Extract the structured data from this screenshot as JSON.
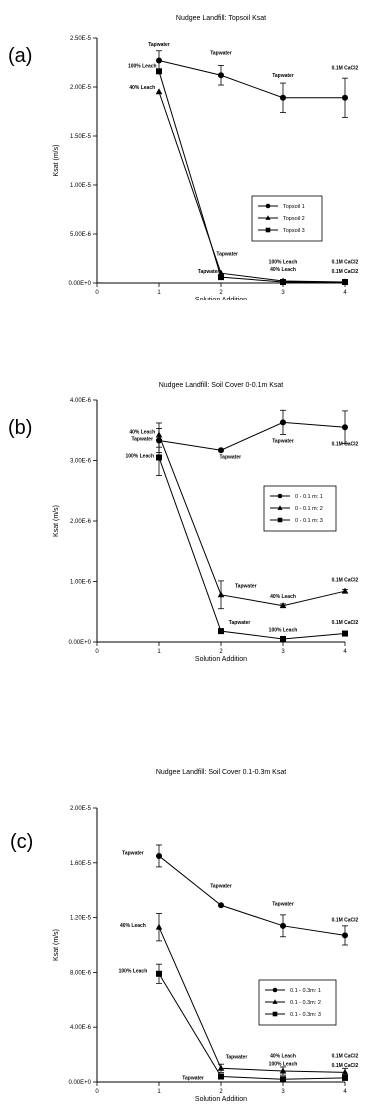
{
  "chart_data": [
    {
      "type": "line",
      "panel_label": "(a)",
      "title": "Nudgee Landfill: Topsoil Ksat",
      "xlabel": "Solution Addition",
      "ylabel": "Ksat (m/s)",
      "xlim": [
        0,
        4
      ],
      "ylim": [
        0,
        2.5e-05
      ],
      "x_ticks": [
        0,
        1,
        2,
        3,
        4
      ],
      "x_tick_labels": [
        "0",
        "1",
        "2",
        "3",
        "4"
      ],
      "y_ticks": [
        0,
        5e-06,
        1e-05,
        1.5e-05,
        2e-05,
        2.5e-05
      ],
      "y_tick_labels": [
        "0.00E+0",
        "5.00E-6",
        "1.00E-5",
        "1.50E-5",
        "2.00E-5",
        "2.50E-5"
      ],
      "x": [
        1,
        2,
        3,
        4
      ],
      "series": [
        {
          "name": "Topsoil 1",
          "marker": "circle",
          "values": [
            2.27e-05,
            2.12e-05,
            1.89e-05,
            1.89e-05
          ],
          "errors": [
            1e-06,
            1e-06,
            1.5e-06,
            2e-06
          ]
        },
        {
          "name": "Topsoil 2",
          "marker": "triangle",
          "values": [
            1.95e-05,
            1e-06,
            2e-07,
            1e-07
          ],
          "errors": [
            0,
            0,
            0,
            0
          ]
        },
        {
          "name": "Topsoil 3",
          "marker": "square",
          "values": [
            2.16e-05,
            6e-07,
            1e-07,
            1e-07
          ],
          "errors": [
            0,
            0,
            0,
            0
          ]
        }
      ],
      "legend_position": "right",
      "annotations": [
        {
          "text": "Tapwater",
          "x": 1,
          "y": 2.42e-05
        },
        {
          "text": "100% Leach",
          "x": 0.73,
          "y": 2.2e-05
        },
        {
          "text": "40% Leach",
          "x": 0.73,
          "y": 1.98e-05
        },
        {
          "text": "Tapwater",
          "x": 2,
          "y": 2.33e-05
        },
        {
          "text": "Tapwater",
          "x": 3,
          "y": 2.1e-05
        },
        {
          "text": "0.1M CaCl2",
          "x": 4,
          "y": 2.18e-05
        },
        {
          "text": "Tapwater",
          "x": 2.1,
          "y": 2.8e-06
        },
        {
          "text": "Tapwater",
          "x": 1.8,
          "y": 1e-06
        },
        {
          "text": "100% Leach",
          "x": 3,
          "y": 2e-06
        },
        {
          "text": "40% Leach",
          "x": 3,
          "y": 1.2e-06
        },
        {
          "text": "0.1M CaCl2",
          "x": 4,
          "y": 2e-06
        },
        {
          "text": "0.1M CaCl2",
          "x": 4,
          "y": 1e-06
        }
      ]
    },
    {
      "type": "line",
      "panel_label": "(b)",
      "title": "Nudgee Landfill: Soil Cover 0-0.1m Ksat",
      "xlabel": "Solution Addition",
      "ylabel": "Ksat (m/s)",
      "xlim": [
        0,
        4
      ],
      "ylim": [
        0,
        4e-06
      ],
      "x_ticks": [
        0,
        1,
        2,
        3,
        4
      ],
      "x_tick_labels": [
        "0",
        "1",
        "2",
        "3",
        "4"
      ],
      "y_ticks": [
        0,
        1e-06,
        2e-06,
        3e-06,
        4e-06
      ],
      "y_tick_labels": [
        "0.00E+0",
        "1.00E-6",
        "2.00E-6",
        "3.00E-6",
        "4.00E-6"
      ],
      "x": [
        1,
        2,
        3,
        4
      ],
      "series": [
        {
          "name": "0 - 0.1 m: 1",
          "marker": "circle",
          "values": [
            3.33e-06,
            3.17e-06,
            3.63e-06,
            3.55e-06
          ],
          "errors": [
            2e-07,
            0,
            2e-07,
            2.7e-07
          ]
        },
        {
          "name": "0 - 0.1 m: 2",
          "marker": "triangle",
          "values": [
            3.42e-06,
            7.8e-07,
            6e-07,
            8.4e-07
          ],
          "errors": [
            2e-07,
            2.3e-07,
            3e-08,
            3e-08
          ]
        },
        {
          "name": "0 - 0.1 m: 3",
          "marker": "square",
          "values": [
            3.05e-06,
            1.8e-07,
            5e-08,
            1.4e-07
          ],
          "errors": [
            3e-07,
            0,
            0,
            0
          ]
        }
      ],
      "legend_position": "right",
      "annotations": [
        {
          "text": "40% Leach",
          "x": 0.73,
          "y": 3.45e-06
        },
        {
          "text": "Tapwater",
          "x": 0.73,
          "y": 3.33e-06
        },
        {
          "text": "100% Leach",
          "x": 0.69,
          "y": 3.05e-06
        },
        {
          "text": "Tapwater",
          "x": 2.15,
          "y": 3.03e-06
        },
        {
          "text": "Tapwater",
          "x": 3,
          "y": 3.3e-06
        },
        {
          "text": "0.1M CaCl2",
          "x": 4,
          "y": 3.25e-06
        },
        {
          "text": "Tapwater",
          "x": 2.4,
          "y": 9e-07
        },
        {
          "text": "40% Leach",
          "x": 3,
          "y": 7.3e-07
        },
        {
          "text": "0.1M CaCl2",
          "x": 4,
          "y": 1e-06
        },
        {
          "text": "Tapwater",
          "x": 2.3,
          "y": 3e-07
        },
        {
          "text": "100% Leach",
          "x": 3,
          "y": 1.7e-07
        },
        {
          "text": "0.1M CaCl2",
          "x": 4,
          "y": 3e-07
        }
      ]
    },
    {
      "type": "line",
      "panel_label": "(c)",
      "title": "Nudgee Landfill: Soil Cover 0.1-0.3m Ksat",
      "xlabel": "Solution Addition",
      "ylabel": "Ksat (m/s)",
      "xlim": [
        0,
        4
      ],
      "ylim": [
        0,
        2e-05
      ],
      "x_ticks": [
        0,
        1,
        2,
        3,
        4
      ],
      "x_tick_labels": [
        "0",
        "1",
        "2",
        "3",
        "4"
      ],
      "y_ticks": [
        0,
        4e-06,
        8e-06,
        1.2e-05,
        1.6e-05,
        2e-05
      ],
      "y_tick_labels": [
        "0.00E+0",
        "4.00E-6",
        "8.00E-6",
        "1.20E-5",
        "1.60E-5",
        "2.00E-5"
      ],
      "x": [
        1,
        2,
        3,
        4
      ],
      "series": [
        {
          "name": "0.1 - 0.3m: 1",
          "marker": "circle",
          "values": [
            1.65e-05,
            1.29e-05,
            1.14e-05,
            1.07e-05
          ],
          "errors": [
            8e-07,
            0,
            8e-07,
            7e-07
          ]
        },
        {
          "name": "0.1 - 0.3m: 2",
          "marker": "triangle",
          "values": [
            1.13e-05,
            1e-06,
            8e-07,
            7e-07
          ],
          "errors": [
            1e-06,
            3e-07,
            3e-07,
            3e-07
          ]
        },
        {
          "name": "0.1 - 0.3m: 3",
          "marker": "square",
          "values": [
            7.9e-06,
            4e-07,
            2e-07,
            3e-07
          ],
          "errors": [
            7e-07,
            0,
            0,
            0
          ]
        }
      ],
      "legend_position": "right",
      "annotations": [
        {
          "text": "Tapwater",
          "x": 0.58,
          "y": 1.66e-05
        },
        {
          "text": "Tapwater",
          "x": 2,
          "y": 1.42e-05
        },
        {
          "text": "Tapwater",
          "x": 3,
          "y": 1.29e-05
        },
        {
          "text": "0.1M CaCl2",
          "x": 4,
          "y": 1.17e-05
        },
        {
          "text": "40% Leach",
          "x": 0.58,
          "y": 1.13e-05
        },
        {
          "text": "100% Leach",
          "x": 0.58,
          "y": 8e-06
        },
        {
          "text": "Tapwater",
          "x": 2.25,
          "y": 1.7e-06
        },
        {
          "text": "40% Leach",
          "x": 3,
          "y": 1.8e-06
        },
        {
          "text": "100% Leach",
          "x": 3,
          "y": 1.2e-06
        },
        {
          "text": "0.1M CaCl2",
          "x": 4,
          "y": 1.8e-06
        },
        {
          "text": "0.1M CaCl2",
          "x": 4,
          "y": 1.1e-06
        },
        {
          "text": "Tapwater",
          "x": 1.55,
          "y": 2e-07
        }
      ]
    }
  ]
}
